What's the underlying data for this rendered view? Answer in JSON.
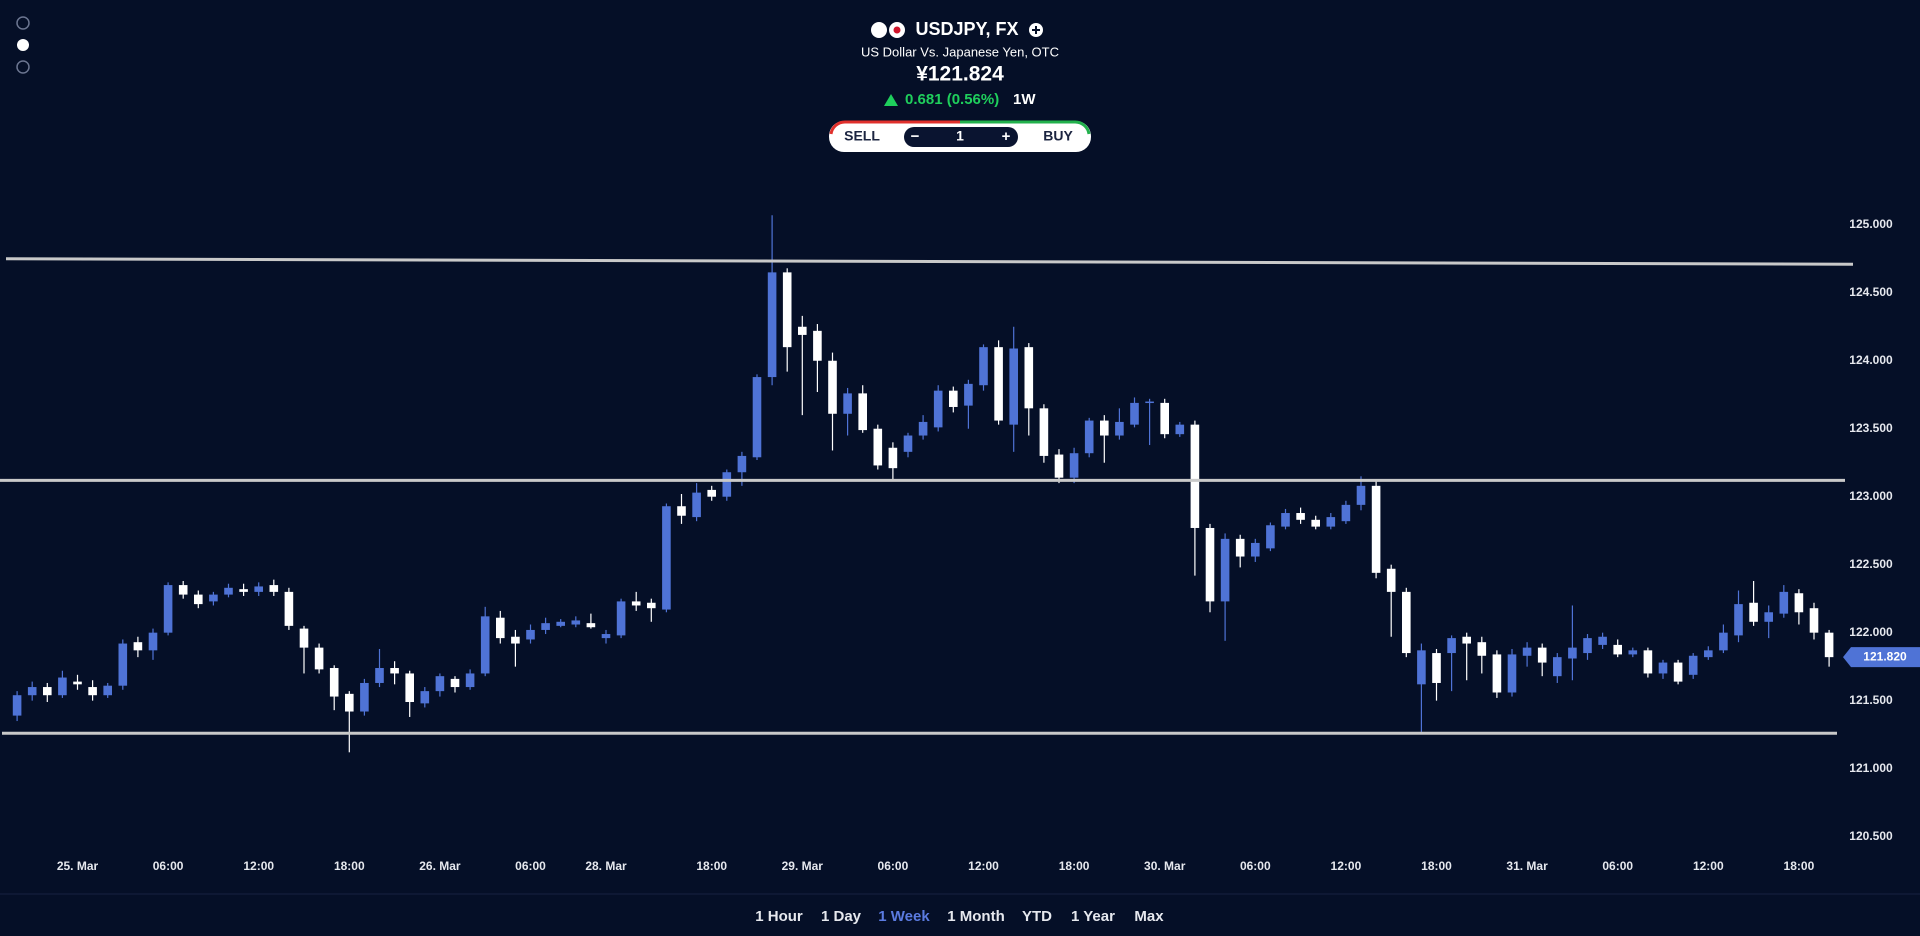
{
  "header": {
    "title": "USDJPY, FX",
    "subtitle": "US Dollar Vs. Japanese Yen, OTC",
    "price": "¥121.824",
    "change": "0.681 (0.56%)",
    "period": "1W"
  },
  "trade": {
    "sell": "SELL",
    "minus": "−",
    "quantity": "1",
    "plus": "+",
    "buy": "BUY"
  },
  "ranges": {
    "items": [
      "1 Hour",
      "1 Day",
      "1 Week",
      "1 Month",
      "YTD",
      "1 Year",
      "Max"
    ],
    "active": 2
  },
  "chart_data": {
    "type": "candlestick",
    "up_color": "#4f73d6",
    "down_color": "#ffffff",
    "categories": [
      null,
      null,
      null,
      null,
      "25. Mar",
      null,
      null,
      null,
      null,
      null,
      "06:00",
      null,
      null,
      null,
      null,
      null,
      "12:00",
      null,
      null,
      null,
      null,
      null,
      "18:00",
      null,
      null,
      null,
      null,
      null,
      "26. Mar",
      null,
      null,
      null,
      null,
      null,
      "06:00",
      null,
      null,
      null,
      null,
      "28. Mar",
      null,
      null,
      null,
      null,
      null,
      null,
      "18:00",
      null,
      null,
      null,
      null,
      null,
      "29. Mar",
      null,
      null,
      null,
      null,
      null,
      "06:00",
      null,
      null,
      null,
      null,
      null,
      "12:00",
      null,
      null,
      null,
      null,
      null,
      "18:00",
      null,
      null,
      null,
      null,
      null,
      "30. Mar",
      null,
      null,
      null,
      null,
      null,
      "06:00",
      null,
      null,
      null,
      null,
      null,
      "12:00",
      null,
      null,
      null,
      null,
      null,
      "18:00",
      null,
      null,
      null,
      null,
      null,
      "31. Mar",
      null,
      null,
      null,
      null,
      null,
      "06:00",
      null,
      null,
      null,
      null,
      null,
      "12:00",
      null,
      null,
      null,
      null,
      null,
      "18:00",
      null,
      null
    ],
    "open": [
      121.39,
      121.54,
      121.6,
      121.54,
      121.64,
      121.6,
      121.54,
      121.61,
      121.93,
      121.87,
      122.0,
      122.35,
      122.28,
      122.23,
      122.28,
      122.32,
      122.3,
      122.35,
      122.3,
      122.03,
      121.89,
      121.74,
      121.55,
      121.42,
      121.63,
      121.74,
      121.7,
      121.48,
      121.57,
      121.66,
      121.6,
      121.7,
      122.11,
      121.97,
      121.95,
      122.02,
      122.05,
      122.06,
      122.07,
      121.96,
      121.98,
      122.23,
      122.22,
      122.17,
      122.93,
      122.85,
      123.05,
      123.0,
      123.18,
      123.29,
      123.88,
      124.65,
      124.25,
      124.22,
      124.0,
      123.61,
      123.76,
      123.5,
      123.36,
      123.33,
      123.45,
      123.51,
      123.78,
      123.67,
      123.82,
      124.1,
      123.53,
      124.1,
      123.65,
      123.31,
      123.14,
      123.32,
      123.56,
      123.45,
      123.53,
      123.69,
      123.69,
      123.46,
      123.53,
      122.77,
      122.23,
      122.69,
      122.56,
      122.62,
      122.78,
      122.88,
      122.83,
      122.78,
      122.82,
      122.94,
      123.08,
      122.47,
      122.3,
      121.62,
      121.85,
      121.85,
      121.97,
      121.93,
      121.84,
      121.56,
      121.83,
      121.89,
      121.68,
      121.81,
      121.85,
      121.91,
      121.91,
      121.84,
      121.87,
      121.7,
      121.78,
      121.69,
      121.82,
      121.87,
      121.98,
      122.22,
      122.08,
      122.14,
      122.29,
      122.18,
      122.0
    ],
    "high": [
      121.57,
      121.64,
      121.63,
      121.72,
      121.69,
      121.65,
      121.63,
      121.95,
      121.97,
      122.03,
      122.37,
      122.38,
      122.31,
      122.3,
      122.36,
      122.36,
      122.37,
      122.39,
      122.33,
      122.05,
      121.92,
      121.76,
      121.57,
      121.66,
      121.88,
      121.79,
      121.72,
      121.6,
      121.7,
      121.68,
      121.73,
      122.19,
      122.16,
      122.02,
      122.06,
      122.11,
      122.1,
      122.12,
      122.14,
      122.02,
      122.25,
      122.3,
      122.25,
      122.95,
      123.02,
      123.1,
      123.08,
      123.2,
      123.33,
      123.9,
      125.07,
      124.68,
      124.33,
      124.27,
      124.06,
      123.8,
      123.82,
      123.53,
      123.4,
      123.47,
      123.6,
      123.82,
      123.81,
      123.86,
      124.12,
      124.15,
      124.25,
      124.13,
      123.68,
      123.35,
      123.36,
      123.58,
      123.6,
      123.65,
      123.73,
      123.72,
      123.72,
      123.55,
      123.56,
      122.8,
      122.73,
      122.72,
      122.69,
      122.81,
      122.91,
      122.92,
      122.86,
      122.88,
      122.97,
      123.15,
      123.12,
      122.5,
      122.33,
      121.92,
      121.88,
      121.98,
      122.0,
      121.97,
      121.87,
      121.88,
      121.93,
      121.92,
      121.85,
      122.2,
      121.99,
      122.0,
      121.95,
      121.89,
      121.89,
      121.8,
      121.8,
      121.85,
      121.9,
      122.06,
      122.31,
      122.38,
      122.2,
      122.35,
      122.32,
      122.22,
      122.02
    ],
    "low": [
      121.35,
      121.5,
      121.49,
      121.52,
      121.58,
      121.5,
      121.52,
      121.58,
      121.82,
      121.8,
      121.98,
      122.25,
      122.18,
      122.2,
      122.26,
      122.27,
      122.27,
      122.27,
      122.02,
      121.7,
      121.7,
      121.43,
      121.12,
      121.39,
      121.6,
      121.62,
      121.38,
      121.45,
      121.53,
      121.56,
      121.58,
      121.68,
      121.92,
      121.75,
      121.92,
      121.99,
      122.04,
      122.04,
      122.03,
      121.92,
      121.96,
      122.16,
      122.08,
      122.15,
      122.8,
      122.82,
      122.97,
      122.97,
      123.08,
      123.27,
      123.82,
      123.92,
      123.6,
      123.77,
      123.34,
      123.45,
      123.47,
      123.2,
      123.12,
      123.29,
      123.42,
      123.48,
      123.62,
      123.5,
      123.78,
      123.53,
      123.33,
      123.45,
      123.25,
      123.1,
      123.1,
      123.29,
      123.25,
      123.42,
      123.51,
      123.38,
      123.43,
      123.44,
      122.42,
      122.15,
      121.94,
      122.48,
      122.52,
      122.6,
      122.76,
      122.8,
      122.76,
      122.76,
      122.8,
      122.9,
      122.4,
      121.97,
      121.82,
      121.27,
      121.5,
      121.57,
      121.65,
      121.7,
      121.52,
      121.53,
      121.75,
      121.68,
      121.63,
      121.65,
      121.8,
      121.88,
      121.82,
      121.82,
      121.67,
      121.66,
      121.62,
      121.66,
      121.8,
      121.85,
      121.93,
      122.05,
      121.96,
      122.11,
      122.06,
      121.95,
      121.75
    ],
    "close": [
      121.54,
      121.6,
      121.54,
      121.67,
      121.62,
      121.54,
      121.61,
      121.92,
      121.87,
      122.0,
      122.35,
      122.28,
      122.21,
      122.28,
      122.33,
      122.3,
      122.34,
      122.3,
      122.05,
      121.89,
      121.73,
      121.53,
      121.42,
      121.63,
      121.74,
      121.7,
      121.49,
      121.57,
      121.68,
      121.6,
      121.7,
      122.12,
      121.96,
      121.92,
      122.02,
      122.07,
      122.08,
      122.09,
      122.04,
      121.99,
      122.23,
      122.2,
      122.18,
      122.93,
      122.86,
      123.03,
      123.0,
      123.18,
      123.3,
      123.88,
      124.65,
      124.1,
      124.19,
      124.0,
      123.61,
      123.76,
      123.49,
      123.23,
      123.21,
      123.45,
      123.55,
      123.78,
      123.66,
      123.83,
      124.1,
      123.56,
      124.09,
      123.65,
      123.3,
      123.14,
      123.32,
      123.56,
      123.45,
      123.55,
      123.69,
      123.7,
      123.46,
      123.53,
      122.77,
      122.23,
      122.69,
      122.56,
      122.66,
      122.79,
      122.88,
      122.83,
      122.78,
      122.85,
      122.94,
      123.08,
      122.44,
      122.3,
      121.85,
      121.87,
      121.63,
      121.96,
      121.92,
      121.83,
      121.56,
      121.84,
      121.89,
      121.78,
      121.82,
      121.89,
      121.96,
      121.97,
      121.84,
      121.87,
      121.7,
      121.78,
      121.64,
      121.83,
      121.87,
      122.0,
      122.21,
      122.08,
      122.15,
      122.3,
      122.15,
      122.0,
      121.82
    ],
    "ylim": [
      120.35,
      125.3
    ],
    "yticks": [
      {
        "value": 120.5,
        "label": "120.500"
      },
      {
        "value": 121,
        "label": "121.000"
      },
      {
        "value": 121.5,
        "label": "121.500"
      },
      {
        "value": 122,
        "label": "122.000"
      },
      {
        "value": 122.5,
        "label": "122.500"
      },
      {
        "value": 123,
        "label": "123.000"
      },
      {
        "value": 123.5,
        "label": "123.500"
      },
      {
        "value": 124,
        "label": "124.000"
      },
      {
        "value": 124.5,
        "label": "124.500"
      },
      {
        "value": 125,
        "label": "125.000"
      }
    ],
    "levels": [
      {
        "start": 124.75,
        "end": 124.71
      },
      {
        "start": 123.12,
        "end": 123.12
      },
      {
        "start": 121.26,
        "end": 121.26
      }
    ],
    "level_color": "#c9c9c9",
    "last_price": {
      "value": 121.82,
      "label": "121.820"
    },
    "last_price_color": "#4f73d6"
  }
}
